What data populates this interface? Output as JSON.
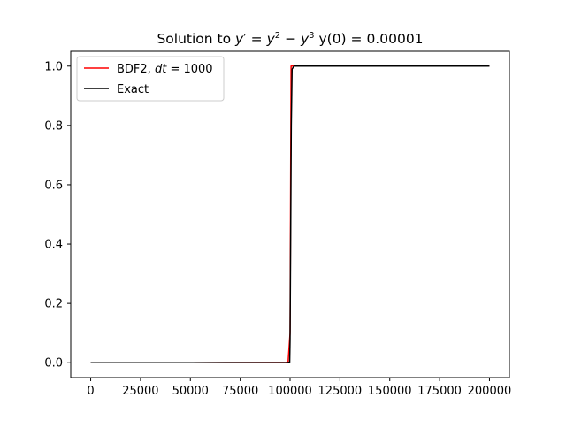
{
  "chart_data": {
    "type": "line",
    "title": "Solution to y′ = y² − y³ y(0) = 0.00001",
    "title_parts": {
      "prefix": "Solution to ",
      "y": "y",
      "prime": "′",
      "eq": " = ",
      "sq": "2",
      "minus": " − ",
      "cube": "3",
      "y0": " y(0) = 0.00001"
    },
    "xlabel": "",
    "ylabel": "",
    "xlim": [
      -10000,
      210000
    ],
    "ylim": [
      -0.05,
      1.05
    ],
    "x_ticks": [
      0,
      25000,
      50000,
      75000,
      100000,
      125000,
      150000,
      175000,
      200000
    ],
    "x_tick_labels": [
      "0",
      "25000",
      "50000",
      "75000",
      "100000",
      "125000",
      "150000",
      "175000",
      "200000"
    ],
    "y_ticks": [
      0.0,
      0.2,
      0.4,
      0.6,
      0.8,
      1.0
    ],
    "y_tick_labels": [
      "0.0",
      "0.2",
      "0.4",
      "0.6",
      "0.8",
      "1.0"
    ],
    "grid": false,
    "legend_position": "top-left",
    "series": [
      {
        "name": "BDF2, dt = 1000",
        "legend_parts": {
          "before": "BDF2, ",
          "italic": "dt",
          "after": " = 1000"
        },
        "color": "#ff0000",
        "x": [
          0,
          50000,
          98000,
          99000,
          100000,
          100500,
          101000,
          102000,
          150000,
          200000
        ],
        "y": [
          1e-05,
          2e-05,
          0.0005,
          0.003,
          0.1,
          1.0,
          1.0,
          1.0,
          1.0,
          1.0
        ]
      },
      {
        "name": "Exact",
        "color": "#000000",
        "x": [
          0,
          50000,
          98000,
          99000,
          99800,
          100000,
          100600,
          101000,
          102000,
          150000,
          200000
        ],
        "y": [
          1e-05,
          2e-05,
          0.0005,
          0.001,
          0.002,
          0.08,
          0.8,
          0.99,
          1.0,
          1.0,
          1.0
        ]
      }
    ]
  }
}
